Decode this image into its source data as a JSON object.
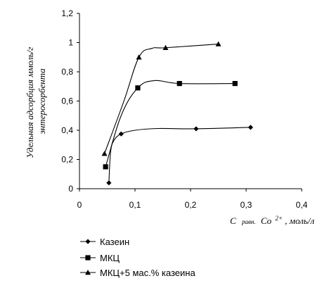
{
  "chart_data": {
    "type": "line",
    "ylabel_lines": [
      "Удельная адсорбция ммоль/г",
      "энтеросорбента"
    ],
    "xlabel": {
      "prefix": "С",
      "sub": "равн.",
      "ion": "Со",
      "charge": "2+",
      "unit": ", моль/л"
    },
    "xlim": [
      0,
      0.4
    ],
    "ylim": [
      0,
      1.2
    ],
    "xticks": [
      "0",
      "0,1",
      "0,2",
      "0,3",
      "0,4"
    ],
    "yticks": [
      "0",
      "0,2",
      "0,4",
      "0,6",
      "0,8",
      "1",
      "1,2"
    ],
    "grid": false,
    "legend_position": "bottom",
    "series": [
      {
        "name": "Казеин",
        "marker": "diamond",
        "color": "#000000",
        "x": [
          0.053,
          0.075,
          0.21,
          0.308
        ],
        "y": [
          0.04,
          0.375,
          0.41,
          0.42
        ],
        "curve": [
          [
            0.053,
            0.04
          ],
          [
            0.056,
            0.25
          ],
          [
            0.062,
            0.33
          ],
          [
            0.075,
            0.375
          ],
          [
            0.1,
            0.4
          ],
          [
            0.14,
            0.412
          ],
          [
            0.21,
            0.41
          ],
          [
            0.308,
            0.42
          ]
        ]
      },
      {
        "name": "МКЦ",
        "marker": "square",
        "color": "#000000",
        "x": [
          0.047,
          0.105,
          0.18,
          0.28
        ],
        "y": [
          0.15,
          0.69,
          0.72,
          0.72
        ],
        "curve": [
          [
            0.047,
            0.15
          ],
          [
            0.075,
            0.5
          ],
          [
            0.105,
            0.69
          ],
          [
            0.135,
            0.74
          ],
          [
            0.18,
            0.72
          ],
          [
            0.28,
            0.72
          ]
        ]
      },
      {
        "name": "МКЦ+5 мас.% казеина",
        "marker": "triangle",
        "color": "#000000",
        "x": [
          0.045,
          0.107,
          0.155,
          0.25
        ],
        "y": [
          0.24,
          0.9,
          0.965,
          0.99
        ],
        "curve": [
          [
            0.045,
            0.24
          ],
          [
            0.08,
            0.6
          ],
          [
            0.107,
            0.9
          ],
          [
            0.13,
            0.96
          ],
          [
            0.155,
            0.965
          ],
          [
            0.25,
            0.99
          ]
        ]
      }
    ]
  }
}
